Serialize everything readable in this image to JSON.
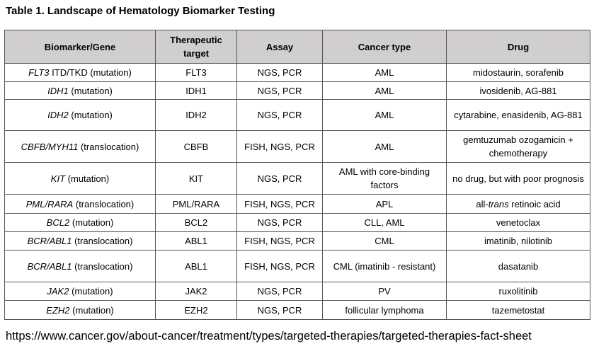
{
  "title": "Table 1. Landscape of Hematology Biomarker Testing",
  "table": {
    "headers": [
      "Biomarker/Gene",
      "Therapeutic target",
      "Assay",
      "Cancer type",
      "Drug"
    ],
    "rows": [
      {
        "gene": "FLT3",
        "detail": "ITD/TKD (mutation)",
        "target": "FLT3",
        "assay": "NGS, PCR",
        "cancer": "AML",
        "drug": [
          "midostaurin,  sorafenib"
        ]
      },
      {
        "gene": "IDH1",
        "detail": "(mutation)",
        "target": "IDH1",
        "assay": "NGS, PCR",
        "cancer": "AML",
        "drug": [
          "ivosidenib, AG-881"
        ]
      },
      {
        "gene": "IDH2",
        "detail": "(mutation)",
        "target": "IDH2",
        "assay": "NGS, PCR",
        "cancer": "AML",
        "drug": [
          "cytarabine,  enasidenib, AG-881"
        ]
      },
      {
        "gene": "CBFB/MYH11",
        "detail": "(translocation)",
        "target": "CBFB",
        "assay": "FISH, NGS, PCR",
        "cancer": "AML",
        "drug": [
          "gemtuzumab ozogamicin + chemotherapy"
        ]
      },
      {
        "gene": "KIT",
        "detail": "(mutation)",
        "target": "KIT",
        "assay": "NGS, PCR",
        "cancer": "AML with core-binding factors",
        "drug": [
          "no drug, but with poor prognosis"
        ]
      },
      {
        "gene": "PML/RARA",
        "detail": "(translocation)",
        "target": "PML/RARA",
        "assay": "FISH, NGS, PCR",
        "cancer": "APL",
        "drug": [
          "all-",
          "trans",
          " retinoic acid"
        ]
      },
      {
        "gene": "BCL2",
        "detail": "(mutation)",
        "target": "BCL2",
        "assay": "NGS, PCR",
        "cancer": "CLL, AML",
        "drug": [
          "venetoclax"
        ]
      },
      {
        "gene": "BCR/ABL1",
        "detail": "(translocation)",
        "target": "ABL1",
        "assay": "FISH, NGS, PCR",
        "cancer": "CML",
        "drug": [
          "imatinib, nilotinib"
        ]
      },
      {
        "gene": "BCR/ABL1",
        "detail": "(translocation)",
        "target": "ABL1",
        "assay": "FISH, NGS, PCR",
        "cancer": "CML (imatinib - resistant)",
        "drug": [
          "dasatanib"
        ]
      },
      {
        "gene": "JAK2",
        "detail": "(mutation)",
        "target": "JAK2",
        "assay": "NGS, PCR",
        "cancer": "PV",
        "drug": [
          "ruxolitinib"
        ]
      },
      {
        "gene": "EZH2",
        "detail": "(mutation)",
        "target": "EZH2",
        "assay": "NGS, PCR",
        "cancer": "follicular lymphoma",
        "drug": [
          "tazemetostat"
        ]
      }
    ]
  },
  "source": "https://www.cancer.gov/about-cancer/treatment/types/targeted-therapies/targeted-therapies-fact-sheet"
}
